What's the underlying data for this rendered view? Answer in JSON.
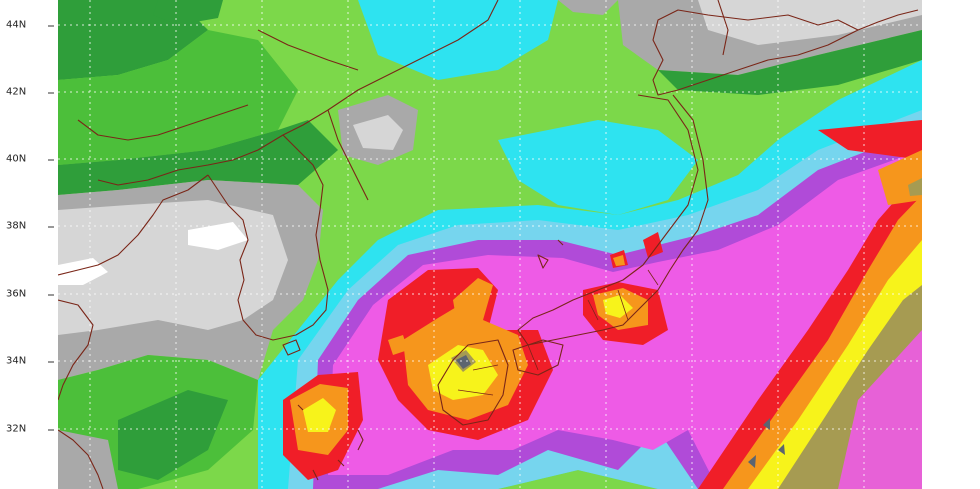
{
  "map": {
    "latitude_labels": [
      "44N",
      "42N",
      "40N",
      "38N",
      "36N",
      "34N",
      "32N"
    ],
    "layers": [
      "precipitation-shading",
      "coastlines",
      "lat-lon-gridlines"
    ],
    "colors": {
      "white": "#ffffff",
      "light_gray": "#d6d6d6",
      "gray": "#a9a9a9",
      "dark_gray": "#8a8a8a",
      "dark_green": "#2f9e3a",
      "green": "#4cbf3a",
      "light_green": "#7cd84a",
      "cyan": "#2ee3f0",
      "light_blue": "#76d5ee",
      "violet": "#b04bd8",
      "magenta": "#ee5be6",
      "red": "#f01e28",
      "orange": "#f6961c",
      "yellow": "#f7f31b",
      "olive": "#a69b52",
      "slate": "#5c6470",
      "coastline": "#7a2618"
    }
  }
}
